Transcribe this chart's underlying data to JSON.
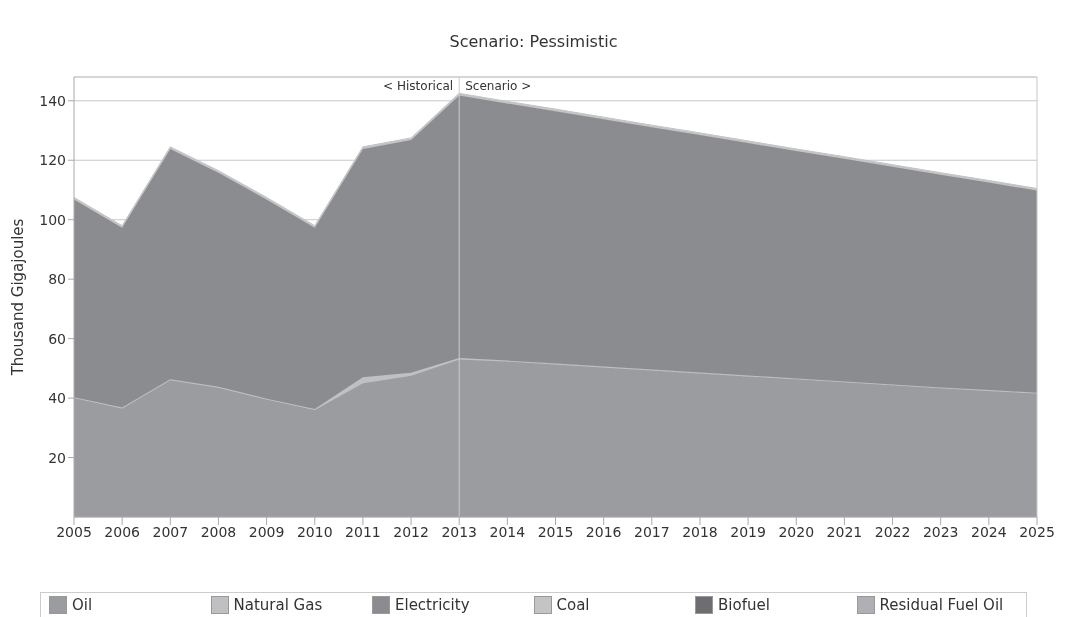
{
  "chart_data": {
    "type": "area",
    "title": "Scenario: Pessimistic",
    "ylabel": "Thousand Gigajoules",
    "stacked": true,
    "x": [
      2005,
      2006,
      2007,
      2008,
      2009,
      2010,
      2011,
      2012,
      2013,
      2014,
      2015,
      2016,
      2017,
      2018,
      2019,
      2020,
      2021,
      2022,
      2023,
      2024,
      2025
    ],
    "series": [
      {
        "name": "Oil",
        "color": "#9b9ca0",
        "values": [
          40,
          36.5,
          46,
          43.5,
          39.5,
          36,
          45,
          47.5,
          53,
          52.3,
          51.3,
          50.3,
          49.3,
          48.3,
          47.3,
          46.3,
          45.3,
          44.3,
          43.3,
          42.4,
          41.5
        ]
      },
      {
        "name": "Natural Gas",
        "color": "#c0c0c2",
        "values": [
          0.3,
          0.3,
          0.3,
          0.3,
          0.3,
          0.3,
          2,
          1,
          0.5,
          0.3,
          0.3,
          0.3,
          0.3,
          0.3,
          0.3,
          0.3,
          0.3,
          0.3,
          0.3,
          0.3,
          0.3
        ]
      },
      {
        "name": "Electricity",
        "color": "#8b8c90",
        "values": [
          66.5,
          60.5,
          77.5,
          72,
          67,
          61,
          76.8,
          78.3,
          88.3,
          86.5,
          84.9,
          83.2,
          81.5,
          79.9,
          78.2,
          76.5,
          74.9,
          73.2,
          71.5,
          69.8,
          68
        ]
      },
      {
        "name": "Coal",
        "color": "#c4c4c6",
        "values": [
          0.7,
          0.7,
          0.7,
          0.7,
          0.7,
          0.7,
          0.7,
          0.7,
          0.7,
          0.7,
          0.7,
          0.7,
          0.7,
          0.7,
          0.7,
          0.7,
          0.7,
          0.7,
          0.7,
          0.7,
          0.7
        ]
      },
      {
        "name": "Biofuel",
        "color": "#6e6e72",
        "values": [
          null,
          null,
          null,
          null,
          null,
          null,
          null,
          null,
          null,
          null,
          null,
          null,
          null,
          null,
          null,
          null,
          null,
          null,
          null,
          null,
          null
        ]
      },
      {
        "name": "Residual Fuel Oil",
        "color": "#b0b0b4",
        "values": [
          null,
          null,
          null,
          null,
          null,
          null,
          null,
          null,
          null,
          null,
          null,
          null,
          null,
          null,
          null,
          null,
          null,
          null,
          null,
          null,
          null
        ]
      }
    ],
    "xlim": [
      2005,
      2025
    ],
    "xticks": [
      2005,
      2006,
      2007,
      2008,
      2009,
      2010,
      2011,
      2012,
      2013,
      2014,
      2015,
      2016,
      2017,
      2018,
      2019,
      2020,
      2021,
      2022,
      2023,
      2024,
      2025
    ],
    "ylim": [
      0,
      148
    ],
    "yticks": [
      20,
      40,
      60,
      80,
      100,
      120,
      140
    ],
    "grid": "y",
    "legend": "bottom",
    "ref_lines": [
      {
        "axis": "x",
        "value": 2013,
        "color": "#cccccc"
      }
    ],
    "annotations": [
      {
        "text": "< Historical",
        "x": 2013,
        "y": 145
      },
      {
        "text": "Scenario >",
        "x": 2013,
        "y": 145
      }
    ]
  }
}
